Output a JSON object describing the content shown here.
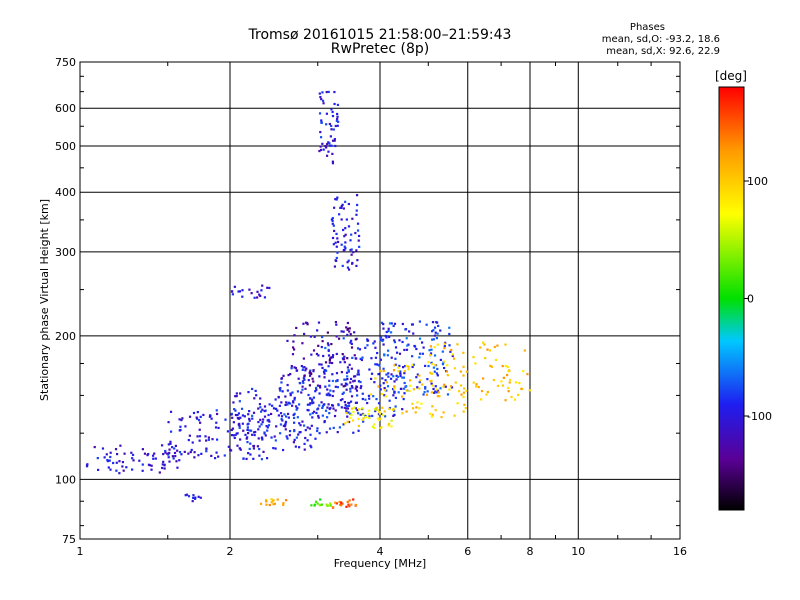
{
  "header": {
    "title_line1": "Tromsø 20161015 21:58:00–21:59:43",
    "title_line2": "RwPretec (8p)"
  },
  "phase_box": {
    "heading": "Phases",
    "line1": "mean, sd,O: -93.2, 18.6",
    "line2": "mean, sd,X:  92.6, 22.9"
  },
  "colorbar": {
    "unit_label": "[deg]",
    "ticks": [
      "100",
      "0",
      "-100"
    ],
    "tick_values": [
      100,
      0,
      -100
    ],
    "range": [
      -180,
      180
    ]
  },
  "chart_data": {
    "type": "scatter",
    "xlabel": "Frequency [MHz]",
    "ylabel": "Stationary phase Virtual Height [km]",
    "x_scale": "log",
    "y_scale": "log",
    "xlim": [
      1,
      16
    ],
    "ylim": [
      75,
      750
    ],
    "grid": true,
    "x_ticks": [
      1,
      2,
      4,
      6,
      8,
      10,
      16
    ],
    "x_tick_labels": [
      "1",
      "2",
      "4",
      "6",
      "8",
      "10",
      "16"
    ],
    "y_ticks": [
      75,
      100,
      200,
      300,
      400,
      500,
      600,
      750
    ],
    "y_tick_labels": [
      "75",
      "100",
      "200",
      "300",
      "400",
      "500",
      "600",
      "750"
    ],
    "color_dimension": "phase [deg]",
    "clusters": [
      {
        "f_range": [
          1.03,
          1.6
        ],
        "h_range": [
          103,
          118
        ],
        "phase": -105,
        "n": 70
      },
      {
        "f_range": [
          1.5,
          2.4
        ],
        "h_range": [
          110,
          140
        ],
        "phase": -100,
        "n": 130
      },
      {
        "f_range": [
          2.0,
          3.0
        ],
        "h_range": [
          115,
          155
        ],
        "phase": -95,
        "n": 140
      },
      {
        "f_range": [
          2.5,
          3.7
        ],
        "h_range": [
          125,
          175
        ],
        "phase": -95,
        "n": 150
      },
      {
        "f_range": [
          3.0,
          4.5
        ],
        "h_range": [
          135,
          200
        ],
        "phase": -90,
        "n": 160
      },
      {
        "f_range": [
          4.0,
          5.6
        ],
        "h_range": [
          150,
          215
        ],
        "phase": -85,
        "n": 130
      },
      {
        "f_range": [
          2.6,
          3.6
        ],
        "h_range": [
          150,
          215
        ],
        "phase": -125,
        "n": 80
      },
      {
        "f_range": [
          3.4,
          4.3
        ],
        "h_range": [
          128,
          142
        ],
        "phase": 80,
        "n": 45
      },
      {
        "f_range": [
          3.8,
          6.0
        ],
        "h_range": [
          135,
          175
        ],
        "phase": 100,
        "n": 70
      },
      {
        "f_range": [
          5.0,
          8.0
        ],
        "h_range": [
          145,
          195
        ],
        "phase": 105,
        "n": 80
      },
      {
        "f_range": [
          3.2,
          3.65
        ],
        "h_range": [
          275,
          395
        ],
        "phase": -100,
        "n": 70
      },
      {
        "f_range": [
          3.0,
          3.3
        ],
        "h_range": [
          460,
          650
        ],
        "phase": -100,
        "n": 55
      },
      {
        "f_range": [
          2.0,
          2.4
        ],
        "h_range": [
          240,
          255
        ],
        "phase": -105,
        "n": 20
      },
      {
        "f_range": [
          1.6,
          1.75
        ],
        "h_range": [
          90,
          93
        ],
        "phase": -100,
        "n": 10
      },
      {
        "f_range": [
          2.3,
          2.6
        ],
        "h_range": [
          88,
          91
        ],
        "phase": 115,
        "n": 15
      },
      {
        "f_range": [
          2.9,
          3.2
        ],
        "h_range": [
          88,
          91
        ],
        "phase": 20,
        "n": 14
      },
      {
        "f_range": [
          3.2,
          3.6
        ],
        "h_range": [
          87,
          91
        ],
        "phase": 150,
        "n": 18
      }
    ]
  }
}
